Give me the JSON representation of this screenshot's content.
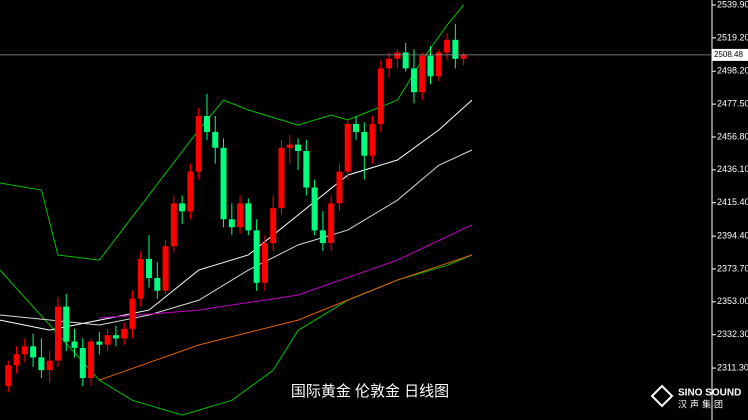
{
  "chart_data": {
    "type": "candlestick",
    "title": "国际黄金 伦敦金 日线图",
    "logo": "SINO SOUND",
    "logo_sub": "汉声集团",
    "up_color": "#ff0000",
    "down_color": "#00ff7f",
    "xlim": [
      -1,
      85
    ],
    "ylim": [
      2278.6,
      2543.05
    ],
    "yticks": [
      {
        "value": 2539.9,
        "label": "2539.90"
      },
      {
        "value": 2519.2,
        "label": "2519.20"
      },
      {
        "value": 2498.2,
        "label": "2498.20"
      },
      {
        "value": 2477.5,
        "label": "2477.50"
      },
      {
        "value": 2456.8,
        "label": "2456.80"
      },
      {
        "value": 2436.1,
        "label": "2436.10"
      },
      {
        "value": 2415.4,
        "label": "2415.40"
      },
      {
        "value": 2394.4,
        "label": "2394.40"
      },
      {
        "value": 2373.7,
        "label": "2373.70"
      },
      {
        "value": 2353,
        "label": "2353.00"
      },
      {
        "value": 2332.3,
        "label": "2332.30"
      },
      {
        "value": 2311.3,
        "label": "2311.30"
      }
    ],
    "last_price": 2508.48,
    "open": [
      2300,
      2313,
      2320,
      2325,
      2318,
      2310,
      2316,
      2350,
      2328,
      2324,
      2305,
      2328,
      2326,
      2332,
      2330,
      2336,
      2355,
      2380,
      2368,
      2360,
      2388,
      2415,
      2410,
      2435,
      2470,
      2460,
      2450,
      2405,
      2400,
      2415,
      2398,
      2365,
      2390,
      2412,
      2450,
      2452,
      2448,
      2425,
      2398,
      2390,
      2415,
      2435,
      2465,
      2460,
      2445,
      2465,
      2500,
      2506,
      2510,
      2500,
      2485,
      2508,
      2495,
      2510,
      2518,
      2506
    ],
    "high": [
      2316,
      2325,
      2330,
      2333,
      2330,
      2322,
      2356,
      2358,
      2336,
      2330,
      2330,
      2334,
      2336,
      2338,
      2340,
      2360,
      2385,
      2395,
      2378,
      2392,
      2420,
      2420,
      2440,
      2475,
      2484,
      2470,
      2456,
      2415,
      2420,
      2418,
      2405,
      2395,
      2420,
      2455,
      2458,
      2456,
      2455,
      2430,
      2410,
      2420,
      2440,
      2468,
      2470,
      2466,
      2470,
      2505,
      2510,
      2512,
      2516,
      2512,
      2510,
      2514,
      2512,
      2522,
      2528,
      2510
    ],
    "low": [
      2296,
      2308,
      2315,
      2312,
      2305,
      2302,
      2312,
      2322,
      2318,
      2300,
      2300,
      2320,
      2322,
      2325,
      2326,
      2330,
      2350,
      2362,
      2355,
      2358,
      2384,
      2402,
      2405,
      2430,
      2455,
      2440,
      2400,
      2395,
      2396,
      2395,
      2360,
      2360,
      2385,
      2408,
      2440,
      2436,
      2420,
      2395,
      2385,
      2385,
      2410,
      2430,
      2455,
      2430,
      2440,
      2460,
      2494,
      2500,
      2498,
      2478,
      2480,
      2490,
      2492,
      2505,
      2500,
      2502
    ],
    "close": [
      2313,
      2320,
      2325,
      2318,
      2310,
      2316,
      2350,
      2328,
      2324,
      2305,
      2328,
      2326,
      2332,
      2330,
      2336,
      2355,
      2380,
      2368,
      2360,
      2388,
      2415,
      2410,
      2435,
      2470,
      2460,
      2450,
      2405,
      2400,
      2415,
      2398,
      2365,
      2390,
      2412,
      2450,
      2452,
      2448,
      2425,
      2398,
      2390,
      2415,
      2435,
      2465,
      2460,
      2445,
      2465,
      2500,
      2506,
      2510,
      2500,
      2485,
      2508,
      2495,
      2510,
      2518,
      2506,
      2508.48
    ],
    "overlays": [
      {
        "color": "#00c000",
        "x": [
          -1,
          4,
          6,
          11,
          17,
          23,
          26,
          29,
          35,
          39,
          41,
          47,
          50,
          53,
          55
        ],
        "values": [
          2427.8,
          2423.4,
          2382.5,
          2379.3,
          2420.3,
          2461.2,
          2480,
          2473.8,
          2464.3,
          2470.6,
          2467.5,
          2480,
          2505.3,
          2527.3,
          2539.9
        ]
      },
      {
        "color": "#00c000",
        "x": [
          -1,
          5,
          11,
          15,
          21,
          27,
          32,
          35,
          41,
          47,
          53,
          56
        ],
        "values": [
          2373,
          2338.4,
          2303.7,
          2291,
          2281.7,
          2291,
          2310,
          2335,
          2354,
          2366.7,
          2376,
          2382.5
        ]
      },
      {
        "color": "#ffffff",
        "x": [
          -1,
          5,
          11,
          17,
          23,
          29,
          35,
          41,
          47,
          52,
          56
        ],
        "values": [
          2341.5,
          2335.2,
          2341.5,
          2347.8,
          2373,
          2382.5,
          2407.7,
          2432.8,
          2442.3,
          2461.2,
          2480
        ]
      },
      {
        "color": "#d8d8d8",
        "x": [
          -1,
          11,
          17,
          23,
          29,
          35,
          41,
          47,
          52,
          56
        ],
        "values": [
          2344.7,
          2338.4,
          2344.7,
          2354,
          2373,
          2388.8,
          2398.2,
          2417,
          2439,
          2448.6
        ]
      },
      {
        "color": "#c000c0",
        "x": [
          11,
          23,
          35,
          47,
          56
        ],
        "values": [
          2342.8,
          2347.8,
          2357.3,
          2379.3,
          2401.4
        ]
      },
      {
        "color": "#e06000",
        "x": [
          11,
          23,
          35,
          47,
          56
        ],
        "values": [
          2303.7,
          2325.8,
          2341.5,
          2366.7,
          2382.5
        ]
      }
    ]
  }
}
